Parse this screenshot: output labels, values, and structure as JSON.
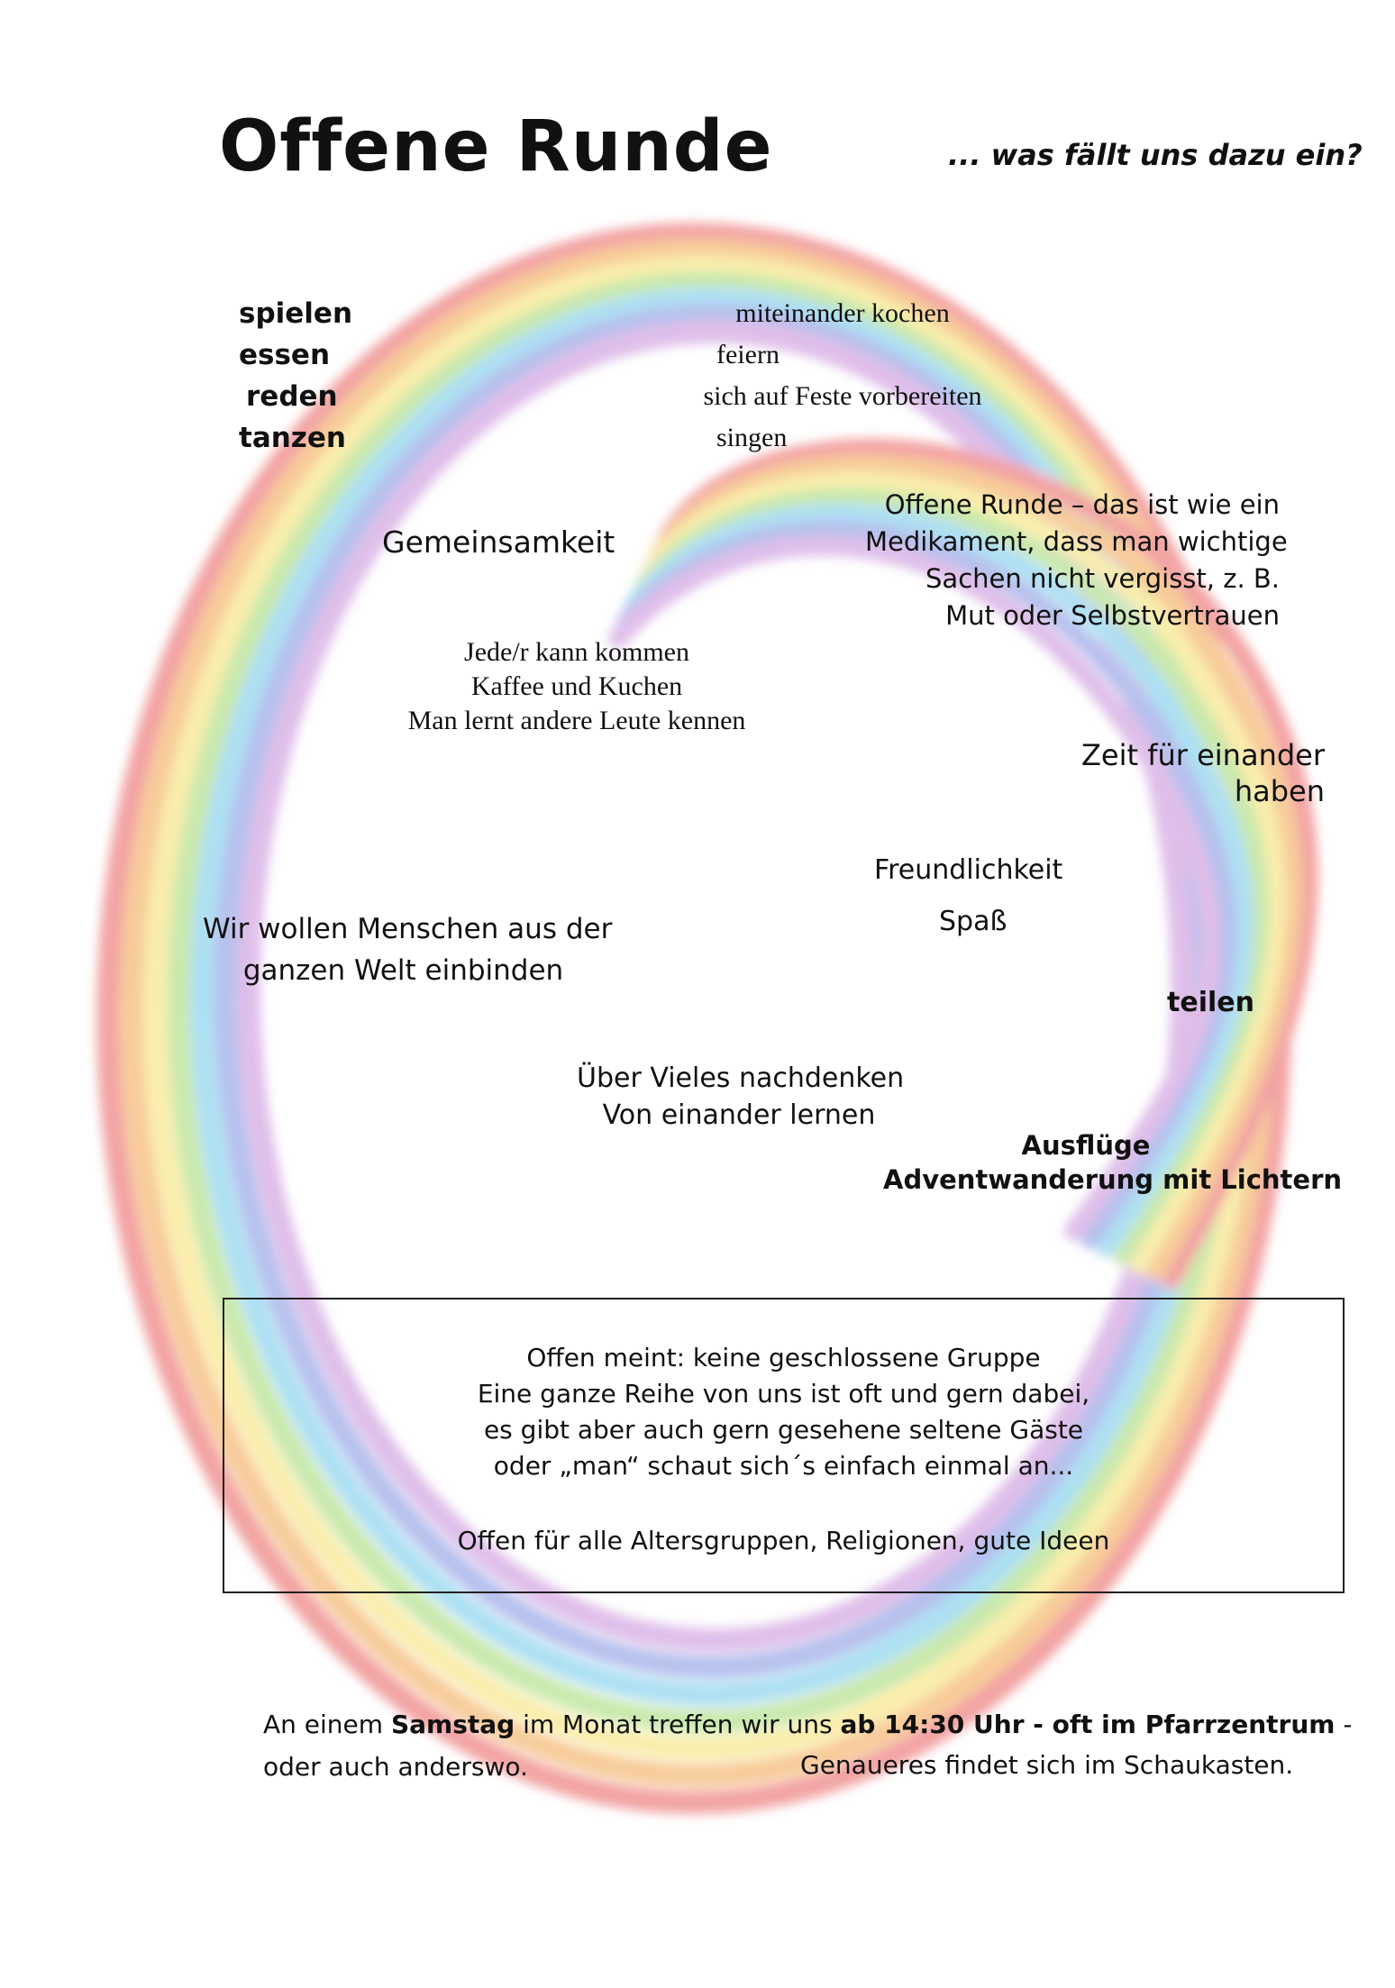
{
  "header": {
    "title": "Offene Runde",
    "subtitle": "... was fällt uns dazu ein?"
  },
  "activities": [
    "spielen",
    "essen",
    "reden",
    "tanzen"
  ],
  "activities_serif": [
    "miteinander kochen",
    "feiern",
    "sich auf Feste vorbereiten",
    "singen"
  ],
  "quote": [
    "Offene Runde – das ist  wie ein",
    "Medikament, dass man wichtige",
    "Sachen nicht vergisst, z. B.",
    "Mut oder Selbstvertrauen"
  ],
  "gemeinsamkeit": "Gemeinsamkeit",
  "jede": [
    "Jede/r kann kommen",
    "Kaffee und Kuchen",
    "Man lernt andere Leute kennen"
  ],
  "zeit": [
    "Zeit für einander",
    "haben"
  ],
  "freundlichkeit": "Freundlichkeit",
  "spass": "Spaß",
  "welt": [
    "Wir wollen Menschen aus der",
    "ganzen Welt einbinden"
  ],
  "teilen": "teilen",
  "vieles": [
    "Über Vieles nachdenken",
    "Von einander lernen"
  ],
  "ausfluege": [
    "Ausflüge",
    "Adventwanderung mit Lichtern"
  ],
  "box": {
    "lines": [
      "Offen meint: keine geschlossene Gruppe",
      "Eine ganze Reihe von uns ist oft und gern dabei,",
      "es gibt aber auch gern gesehene seltene Gäste",
      "oder „man“ schaut sich´s einfach einmal an..."
    ],
    "footer": "Offen für alle Altersgruppen, Religionen, gute Ideen"
  },
  "footer": {
    "p1": "An einem ",
    "p2": "Samstag",
    "p3": " im Monat treffen wir uns ",
    "p4": "ab 14:30 Uhr - oft im Pfarrzentrum",
    "p5": " -",
    "line2a": "oder auch anderswo.",
    "line2b": "Genaueres findet sich im Schaukasten."
  },
  "colors": {
    "text": "#111111",
    "rainbow": [
      "#e85a5a",
      "#f2a24a",
      "#f5e06a",
      "#9fd86c",
      "#6cc7e8",
      "#7b8fe0",
      "#c58ad8"
    ]
  }
}
